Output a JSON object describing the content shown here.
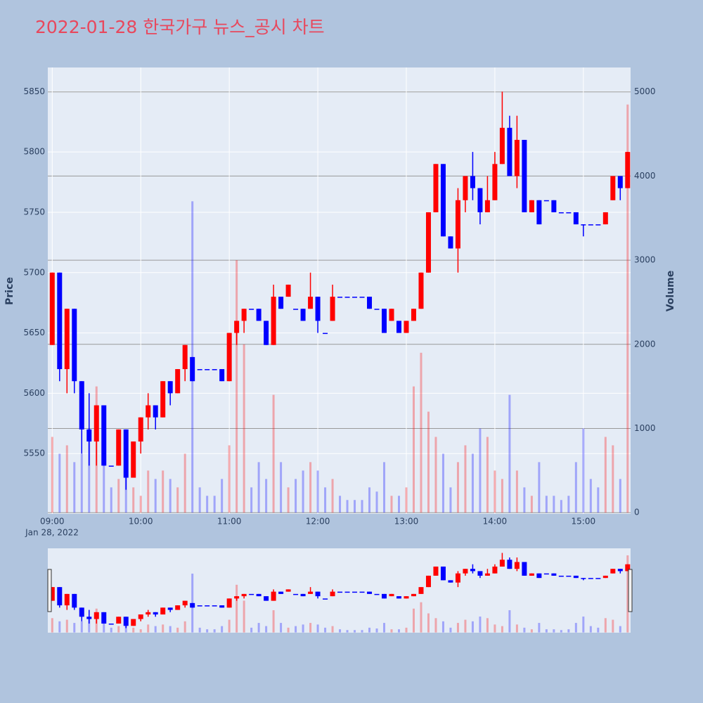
{
  "chart_data": {
    "type": "candlestick",
    "title": "2022-01-28 한국가구 뉴스_공시 차트",
    "ylabel": "Price",
    "y2label": "Volume",
    "x_date_label": "Jan 28, 2022",
    "increasing_color": "#ff0000",
    "decreasing_color": "#0000ff",
    "x": [
      "2022-01-28 09:00",
      "2022-01-28 09:05",
      "2022-01-28 09:10",
      "2022-01-28 09:15",
      "2022-01-28 09:20",
      "2022-01-28 09:25",
      "2022-01-28 09:30",
      "2022-01-28 09:35",
      "2022-01-28 09:40",
      "2022-01-28 09:45",
      "2022-01-28 09:50",
      "2022-01-28 09:55",
      "2022-01-28 10:00",
      "2022-01-28 10:05",
      "2022-01-28 10:10",
      "2022-01-28 10:15",
      "2022-01-28 10:20",
      "2022-01-28 10:25",
      "2022-01-28 10:30",
      "2022-01-28 10:35",
      "2022-01-28 10:40",
      "2022-01-28 10:45",
      "2022-01-28 10:50",
      "2022-01-28 10:55",
      "2022-01-28 11:00",
      "2022-01-28 11:05",
      "2022-01-28 11:10",
      "2022-01-28 11:15",
      "2022-01-28 11:20",
      "2022-01-28 11:25",
      "2022-01-28 11:30",
      "2022-01-28 11:35",
      "2022-01-28 11:40",
      "2022-01-28 11:45",
      "2022-01-28 11:50",
      "2022-01-28 11:55",
      "2022-01-28 12:00",
      "2022-01-28 12:05",
      "2022-01-28 12:10",
      "2022-01-28 12:15",
      "2022-01-28 12:20",
      "2022-01-28 12:25",
      "2022-01-28 12:30",
      "2022-01-28 12:35",
      "2022-01-28 12:40",
      "2022-01-28 12:45",
      "2022-01-28 12:50",
      "2022-01-28 12:55",
      "2022-01-28 13:00",
      "2022-01-28 13:05",
      "2022-01-28 13:10",
      "2022-01-28 13:15",
      "2022-01-28 13:20",
      "2022-01-28 13:25",
      "2022-01-28 13:30",
      "2022-01-28 13:35",
      "2022-01-28 13:40",
      "2022-01-28 13:45",
      "2022-01-28 13:50",
      "2022-01-28 13:55",
      "2022-01-28 14:00",
      "2022-01-28 14:05",
      "2022-01-28 14:10",
      "2022-01-28 14:15",
      "2022-01-28 14:20",
      "2022-01-28 14:25",
      "2022-01-28 14:30",
      "2022-01-28 14:35",
      "2022-01-28 14:40",
      "2022-01-28 14:45",
      "2022-01-28 14:50",
      "2022-01-28 14:55",
      "2022-01-28 15:00",
      "2022-01-28 15:05",
      "2022-01-28 15:10",
      "2022-01-28 15:15",
      "2022-01-28 15:20",
      "2022-01-28 15:25",
      "2022-01-28 15:30"
    ],
    "open": [
      5640,
      5700,
      5620,
      5670,
      5610,
      5570,
      5560,
      5590,
      5540,
      5540,
      5570,
      5530,
      5560,
      5580,
      5590,
      5580,
      5610,
      5600,
      5620,
      5630,
      5620,
      5620,
      5620,
      5620,
      5610,
      5650,
      5660,
      5670,
      5670,
      5660,
      5640,
      5680,
      5680,
      5670,
      5670,
      5670,
      5680,
      5650,
      5660,
      5680,
      5680,
      5680,
      5680,
      5680,
      5670,
      5670,
      5660,
      5660,
      5650,
      5660,
      5670,
      5700,
      5750,
      5790,
      5730,
      5720,
      5760,
      5780,
      5770,
      5750,
      5760,
      5790,
      5820,
      5780,
      5810,
      5750,
      5760,
      5760,
      5760,
      5750,
      5750,
      5750,
      5740,
      5740,
      5740,
      5740,
      5760,
      5780,
      5770
    ],
    "high": [
      5700,
      5700,
      5670,
      5670,
      5610,
      5600,
      5590,
      5590,
      5540,
      5570,
      5570,
      5560,
      5580,
      5600,
      5590,
      5610,
      5610,
      5620,
      5640,
      5630,
      5620,
      5620,
      5620,
      5620,
      5650,
      5660,
      5670,
      5670,
      5670,
      5660,
      5690,
      5680,
      5690,
      5670,
      5670,
      5700,
      5680,
      5650,
      5690,
      5680,
      5680,
      5680,
      5680,
      5680,
      5670,
      5670,
      5670,
      5660,
      5660,
      5670,
      5700,
      5750,
      5790,
      5790,
      5730,
      5770,
      5780,
      5800,
      5770,
      5780,
      5800,
      5850,
      5830,
      5830,
      5810,
      5760,
      5760,
      5760,
      5760,
      5750,
      5750,
      5750,
      5740,
      5740,
      5740,
      5750,
      5780,
      5780,
      5800
    ],
    "low": [
      5640,
      5610,
      5600,
      5600,
      5550,
      5540,
      5540,
      5540,
      5540,
      5540,
      5520,
      5530,
      5550,
      5570,
      5570,
      5580,
      5590,
      5600,
      5610,
      5610,
      5620,
      5620,
      5620,
      5610,
      5610,
      5640,
      5650,
      5670,
      5660,
      5640,
      5640,
      5670,
      5680,
      5670,
      5660,
      5670,
      5650,
      5650,
      5660,
      5680,
      5680,
      5680,
      5680,
      5670,
      5670,
      5650,
      5660,
      5650,
      5650,
      5660,
      5670,
      5700,
      5750,
      5730,
      5720,
      5700,
      5750,
      5760,
      5740,
      5750,
      5760,
      5790,
      5780,
      5770,
      5750,
      5750,
      5740,
      5760,
      5750,
      5750,
      5750,
      5740,
      5730,
      5740,
      5740,
      5740,
      5760,
      5760,
      5770
    ],
    "close": [
      5700,
      5620,
      5670,
      5610,
      5570,
      5560,
      5590,
      5540,
      5540,
      5570,
      5530,
      5560,
      5580,
      5590,
      5580,
      5610,
      5600,
      5620,
      5640,
      5610,
      5620,
      5620,
      5620,
      5610,
      5650,
      5660,
      5670,
      5670,
      5660,
      5640,
      5680,
      5670,
      5690,
      5670,
      5660,
      5680,
      5660,
      5650,
      5680,
      5680,
      5680,
      5680,
      5680,
      5670,
      5670,
      5650,
      5670,
      5650,
      5660,
      5670,
      5700,
      5750,
      5790,
      5730,
      5720,
      5760,
      5780,
      5770,
      5750,
      5760,
      5790,
      5820,
      5780,
      5810,
      5750,
      5760,
      5740,
      5760,
      5750,
      5750,
      5750,
      5740,
      5740,
      5740,
      5740,
      5750,
      5780,
      5770,
      5800
    ],
    "volume": [
      900,
      700,
      800,
      600,
      700,
      1000,
      1500,
      800,
      300,
      400,
      500,
      300,
      200,
      500,
      400,
      500,
      400,
      300,
      700,
      3700,
      300,
      200,
      200,
      400,
      800,
      3000,
      2000,
      300,
      600,
      400,
      1400,
      600,
      300,
      400,
      500,
      600,
      500,
      300,
      400,
      200,
      150,
      150,
      150,
      300,
      250,
      600,
      200,
      200,
      300,
      1500,
      1900,
      1200,
      900,
      700,
      300,
      600,
      800,
      700,
      1000,
      900,
      500,
      400,
      1400,
      500,
      300,
      200,
      600,
      200,
      200,
      150,
      200,
      600,
      1000,
      400,
      300,
      900,
      800,
      400,
      4850
    ],
    "xlim": [
      "2022-01-28 08:57",
      "2022-01-28 15:32"
    ],
    "xticks": [
      {
        "value": "2022-01-28 09:00",
        "label": "09:00"
      },
      {
        "value": "2022-01-28 10:00",
        "label": "10:00"
      },
      {
        "value": "2022-01-28 11:00",
        "label": "11:00"
      },
      {
        "value": "2022-01-28 12:00",
        "label": "12:00"
      },
      {
        "value": "2022-01-28 13:00",
        "label": "13:00"
      },
      {
        "value": "2022-01-28 14:00",
        "label": "14:00"
      },
      {
        "value": "2022-01-28 15:00",
        "label": "15:00"
      }
    ],
    "ylim": [
      5500,
      5870
    ],
    "yticks": [
      5550,
      5600,
      5650,
      5700,
      5750,
      5800,
      5850
    ],
    "y2lim": [
      -15,
      5290
    ],
    "y2ticks": [
      0,
      1000,
      2000,
      3000,
      4000,
      5000
    ],
    "grid": true,
    "rangeslider": true
  }
}
